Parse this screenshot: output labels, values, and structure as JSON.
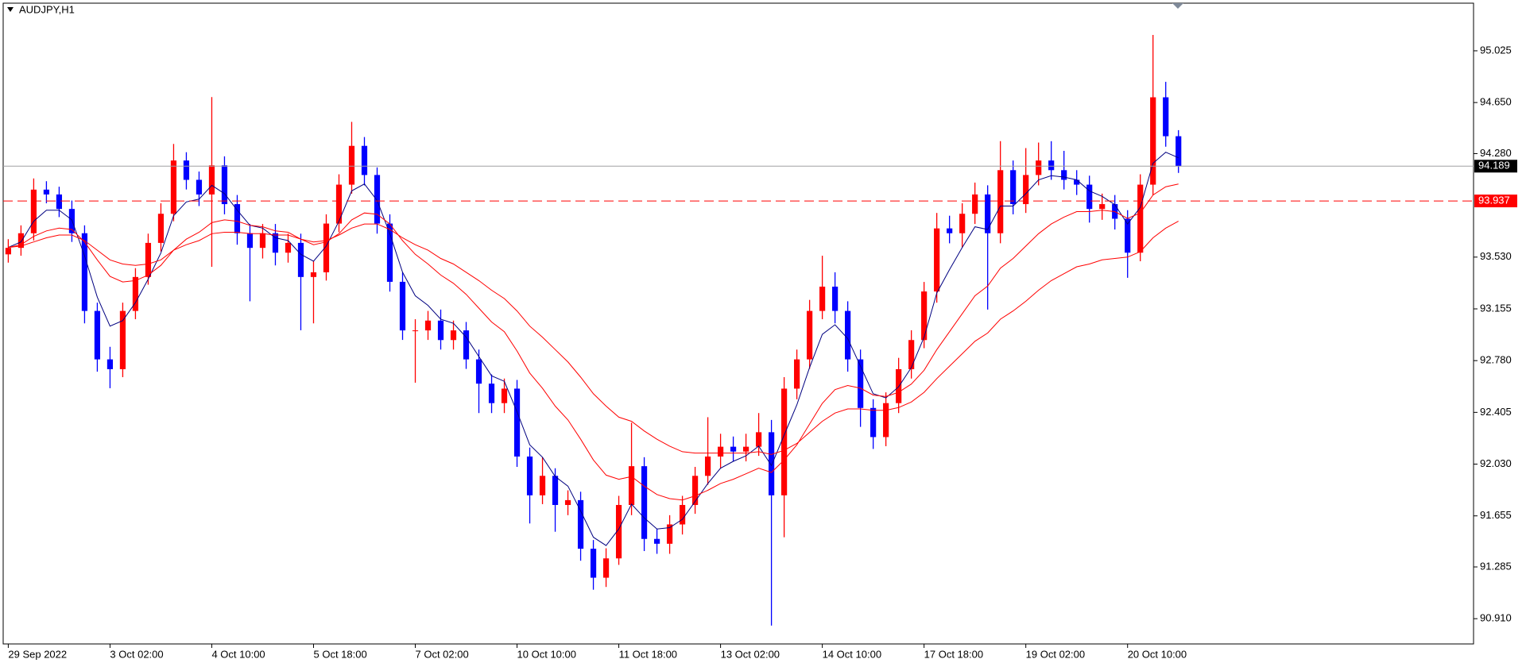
{
  "chart_data": {
    "type": "candlestick",
    "title": "AUDJPY,H1",
    "up_color": "#ff0000",
    "down_color": "#0000ff",
    "open": [
      93.55,
      93.597,
      93.703,
      94.019,
      93.984,
      93.879,
      93.703,
      93.14,
      92.789,
      92.718,
      93.14,
      93.386,
      93.633,
      93.844,
      94.23,
      94.09,
      93.984,
      94.195,
      93.914,
      93.703,
      93.597,
      93.703,
      93.562,
      93.633,
      93.386,
      93.42,
      93.773,
      94.055,
      94.336,
      94.125,
      93.773,
      93.351,
      92.999,
      92.999,
      93.07,
      92.929,
      92.999,
      92.789,
      92.613,
      92.472,
      92.577,
      92.085,
      91.804,
      91.945,
      91.734,
      91.769,
      91.417,
      91.207,
      91.347,
      91.734,
      92.015,
      91.488,
      91.453,
      91.593,
      91.734,
      91.945,
      92.085,
      92.156,
      92.121,
      92.156,
      92.261,
      91.804,
      92.577,
      92.789,
      93.14,
      93.316,
      93.14,
      92.789,
      92.437,
      92.226,
      92.472,
      92.718,
      92.929,
      93.281,
      93.738,
      93.703,
      93.844,
      93.984,
      93.703,
      94.16,
      93.914,
      94.125,
      94.23,
      94.16,
      94.09,
      94.055,
      93.879,
      93.914,
      93.808,
      93.562,
      94.055,
      94.688,
      94.406
    ],
    "high": [
      93.66,
      93.76,
      94.1,
      94.08,
      94.04,
      93.94,
      93.76,
      93.2,
      92.88,
      93.2,
      93.45,
      93.7,
      93.92,
      94.35,
      94.29,
      94.15,
      94.69,
      94.26,
      93.98,
      93.77,
      93.77,
      93.77,
      93.7,
      93.7,
      93.5,
      93.84,
      94.13,
      94.51,
      94.4,
      94.18,
      93.84,
      93.42,
      93.08,
      93.14,
      93.15,
      93.07,
      93.06,
      92.86,
      92.68,
      92.65,
      92.64,
      92.15,
      92.08,
      92.0,
      91.84,
      91.83,
      91.48,
      91.42,
      91.8,
      92.33,
      92.08,
      91.56,
      91.66,
      91.8,
      92.01,
      92.37,
      92.25,
      92.23,
      92.25,
      92.4,
      92.35,
      92.66,
      92.86,
      93.22,
      93.54,
      93.42,
      93.21,
      92.86,
      92.5,
      92.55,
      92.8,
      93.0,
      93.35,
      93.85,
      93.83,
      93.92,
      94.07,
      94.05,
      94.37,
      94.23,
      94.32,
      94.36,
      94.37,
      94.3,
      94.16,
      94.12,
      93.99,
      93.98,
      93.87,
      94.13,
      95.14,
      94.8,
      94.45
    ],
    "low": [
      93.49,
      93.54,
      93.65,
      93.92,
      93.82,
      93.64,
      93.05,
      92.7,
      92.58,
      92.66,
      93.08,
      93.33,
      93.57,
      93.79,
      94.02,
      93.9,
      93.46,
      93.84,
      93.62,
      93.21,
      93.52,
      93.47,
      93.49,
      93.0,
      93.05,
      93.36,
      93.71,
      93.99,
      94.05,
      93.7,
      93.28,
      92.93,
      92.62,
      92.93,
      92.86,
      92.86,
      92.72,
      92.4,
      92.4,
      92.4,
      92.01,
      91.6,
      91.74,
      91.54,
      91.66,
      91.33,
      91.12,
      91.14,
      91.3,
      91.66,
      91.4,
      91.38,
      91.38,
      91.52,
      91.67,
      91.88,
      92.0,
      92.05,
      92.05,
      92.09,
      90.86,
      91.5,
      92.5,
      92.72,
      93.08,
      93.05,
      92.7,
      92.3,
      92.14,
      92.16,
      92.4,
      92.65,
      92.87,
      93.2,
      93.63,
      93.6,
      93.77,
      93.15,
      93.63,
      93.84,
      93.85,
      94.05,
      94.09,
      94.02,
      93.98,
      93.78,
      93.8,
      93.73,
      93.38,
      93.5,
      93.98,
      94.33,
      94.14
    ],
    "close": [
      93.597,
      93.703,
      94.019,
      93.984,
      93.879,
      93.703,
      93.14,
      92.789,
      92.718,
      93.14,
      93.386,
      93.633,
      93.844,
      94.23,
      94.09,
      93.984,
      94.195,
      93.914,
      93.703,
      93.597,
      93.703,
      93.562,
      93.633,
      93.386,
      93.42,
      93.773,
      94.055,
      94.336,
      94.125,
      93.773,
      93.351,
      92.999,
      92.999,
      93.07,
      92.929,
      92.999,
      92.789,
      92.613,
      92.472,
      92.577,
      92.085,
      91.804,
      91.945,
      91.734,
      91.769,
      91.417,
      91.207,
      91.347,
      91.734,
      92.015,
      91.488,
      91.453,
      91.593,
      91.734,
      91.945,
      92.085,
      92.156,
      92.121,
      92.156,
      92.261,
      91.804,
      92.577,
      92.789,
      93.14,
      93.316,
      93.14,
      92.789,
      92.437,
      92.226,
      92.472,
      92.718,
      92.929,
      93.281,
      93.738,
      93.703,
      93.844,
      93.984,
      93.703,
      94.16,
      93.914,
      94.125,
      94.23,
      94.16,
      94.09,
      94.055,
      93.879,
      93.914,
      93.808,
      93.562,
      94.055,
      94.688,
      94.406,
      94.189
    ],
    "series": [
      {
        "color": "#000080",
        "values": [
          93.6,
          93.64,
          93.79,
          93.87,
          93.87,
          93.8,
          93.54,
          93.24,
          93.03,
          93.07,
          93.2,
          93.37,
          93.56,
          93.83,
          93.93,
          93.95,
          94.05,
          93.99,
          93.87,
          93.76,
          93.74,
          93.67,
          93.65,
          93.55,
          93.5,
          93.61,
          93.79,
          94.01,
          94.06,
          93.94,
          93.7,
          93.42,
          93.25,
          93.18,
          93.08,
          93.05,
          92.95,
          92.81,
          92.67,
          92.63,
          92.41,
          92.17,
          92.08,
          91.94,
          91.87,
          91.69,
          91.5,
          91.44,
          91.56,
          91.74,
          91.64,
          91.56,
          91.57,
          91.63,
          91.76,
          91.89,
          92.0,
          92.05,
          92.09,
          92.16,
          92.02,
          92.24,
          92.46,
          92.73,
          92.97,
          93.04,
          92.94,
          92.74,
          92.54,
          92.51,
          92.59,
          92.73,
          92.95,
          93.27,
          93.44,
          93.6,
          93.75,
          93.73,
          93.9,
          93.9,
          93.99,
          94.09,
          94.12,
          94.11,
          94.09,
          94.01,
          93.97,
          93.91,
          93.77,
          93.89,
          94.21,
          94.29,
          94.25
        ]
      },
      {
        "color": "#ff0000",
        "values": [
          93.6,
          93.62,
          93.68,
          93.72,
          93.74,
          93.73,
          93.64,
          93.51,
          93.39,
          93.35,
          93.36,
          93.4,
          93.47,
          93.58,
          93.66,
          93.71,
          93.78,
          93.8,
          93.79,
          93.76,
          93.75,
          93.72,
          93.71,
          93.66,
          93.62,
          93.64,
          93.7,
          93.8,
          93.85,
          93.84,
          93.77,
          93.65,
          93.55,
          93.48,
          93.4,
          93.34,
          93.26,
          93.16,
          93.06,
          92.99,
          92.85,
          92.69,
          92.58,
          92.45,
          92.35,
          92.21,
          92.06,
          91.95,
          91.92,
          91.94,
          91.87,
          91.81,
          91.78,
          91.77,
          91.8,
          91.84,
          91.89,
          91.92,
          91.96,
          92.0,
          91.97,
          92.06,
          92.17,
          92.32,
          92.47,
          92.57,
          92.6,
          92.58,
          92.53,
          92.52,
          92.55,
          92.61,
          92.71,
          92.86,
          92.99,
          93.12,
          93.25,
          93.32,
          93.45,
          93.52,
          93.61,
          93.7,
          93.77,
          93.82,
          93.86,
          93.86,
          93.87,
          93.86,
          93.81,
          93.85,
          93.98,
          94.04,
          94.06
        ]
      },
      {
        "color": "#ff0000",
        "values": [
          93.6,
          93.61,
          93.64,
          93.67,
          93.69,
          93.69,
          93.65,
          93.58,
          93.51,
          93.48,
          93.47,
          93.48,
          93.51,
          93.58,
          93.62,
          93.65,
          93.7,
          93.71,
          93.71,
          93.7,
          93.7,
          93.69,
          93.69,
          93.66,
          93.64,
          93.65,
          93.69,
          93.74,
          93.77,
          93.77,
          93.73,
          93.67,
          93.62,
          93.58,
          93.52,
          93.48,
          93.42,
          93.36,
          93.29,
          93.23,
          93.14,
          93.03,
          92.95,
          92.86,
          92.77,
          92.66,
          92.54,
          92.45,
          92.37,
          92.34,
          92.27,
          92.21,
          92.16,
          92.12,
          92.11,
          92.11,
          92.11,
          92.11,
          92.11,
          92.12,
          92.1,
          92.13,
          92.18,
          92.26,
          92.34,
          92.4,
          92.43,
          92.43,
          92.42,
          92.42,
          92.44,
          92.48,
          92.55,
          92.65,
          92.74,
          92.83,
          92.92,
          92.98,
          93.08,
          93.14,
          93.21,
          93.29,
          93.36,
          93.41,
          93.46,
          93.48,
          93.51,
          93.52,
          93.53,
          93.57,
          93.67,
          93.74,
          93.79
        ]
      }
    ],
    "hlines": [
      {
        "value": 94.189,
        "color": "#a0a0a4",
        "label_color": "#000000",
        "dashed": false
      },
      {
        "value": 93.937,
        "color": "#ff0000",
        "label_color": "#ff0000",
        "dashed": true
      }
    ],
    "xlim": [
      -0.4,
      115.2
    ],
    "xticks": [
      {
        "value": 0,
        "label": "29 Sep 2022"
      },
      {
        "value": 8,
        "label": "3 Oct 02:00"
      },
      {
        "value": 16,
        "label": "4 Oct 10:00"
      },
      {
        "value": 24,
        "label": "5 Oct 18:00"
      },
      {
        "value": 32,
        "label": "7 Oct 02:00"
      },
      {
        "value": 40,
        "label": "10 Oct 10:00"
      },
      {
        "value": 48,
        "label": "11 Oct 18:00"
      },
      {
        "value": 56,
        "label": "13 Oct 02:00"
      },
      {
        "value": 64,
        "label": "14 Oct 10:00"
      },
      {
        "value": 72,
        "label": "17 Oct 18:00"
      },
      {
        "value": 80,
        "label": "19 Oct 02:00"
      },
      {
        "value": 88,
        "label": "20 Oct 10:00"
      }
    ],
    "ylim": [
      90.727,
      95.37
    ],
    "yticks": [
      95.025,
      {
        "value": 94.65,
        "label": "94.650"
      },
      {
        "value": 94.28,
        "label": "94.280"
      },
      {
        "value": 93.53,
        "label": "93.530"
      },
      93.155,
      {
        "value": 92.78,
        "label": "92.780"
      },
      92.405,
      {
        "value": 92.03,
        "label": "92.030"
      },
      91.655,
      91.285,
      {
        "value": 90.91,
        "label": "90.910"
      }
    ]
  }
}
